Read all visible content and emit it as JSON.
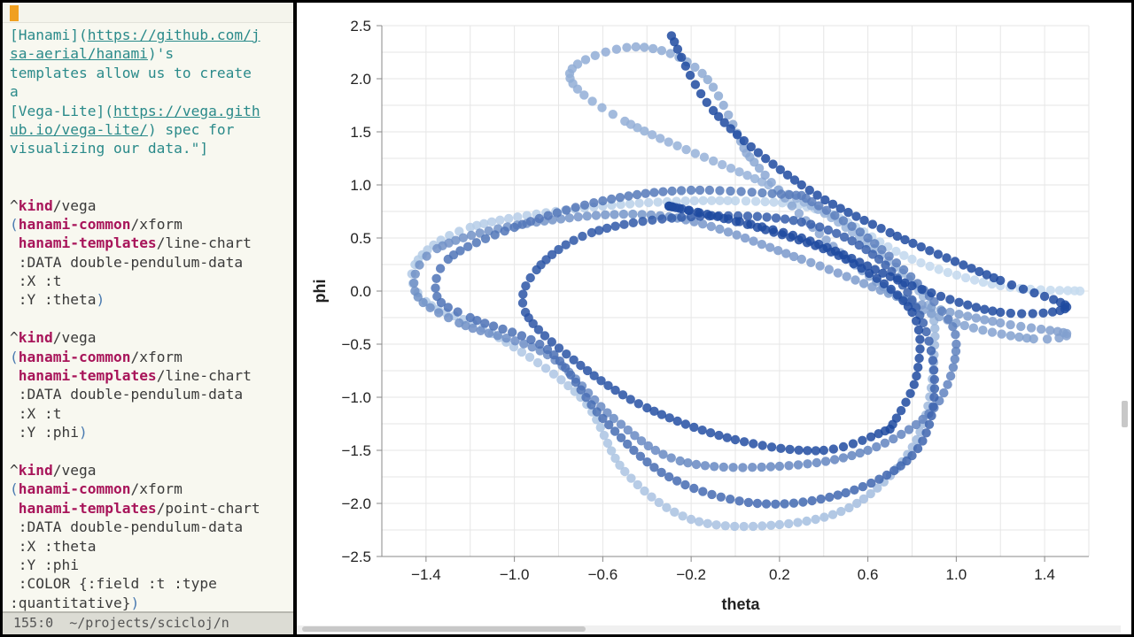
{
  "editor": {
    "lines": [
      [
        {
          "t": "[Hanami](",
          "c": "str"
        },
        {
          "t": "https://github.com/j",
          "c": "link"
        }
      ],
      [
        {
          "t": "sa-aerial/hanami",
          "c": "link"
        },
        {
          "t": ")'s",
          "c": "str"
        }
      ],
      [
        {
          "t": "templates allow us to create",
          "c": "str"
        }
      ],
      [
        {
          "t": "a",
          "c": "str"
        }
      ],
      [
        {
          "t": "[Vega-Lite](",
          "c": "str"
        },
        {
          "t": "https://vega.gith",
          "c": "link"
        }
      ],
      [
        {
          "t": "ub.io/vega-lite/",
          "c": "link"
        },
        {
          "t": ") spec for",
          "c": "str"
        }
      ],
      [
        {
          "t": "visualizing our data.\"]",
          "c": "str"
        }
      ],
      [],
      [],
      [
        {
          "t": "^",
          "c": "plain"
        },
        {
          "t": "kind",
          "c": "kw"
        },
        {
          "t": "/vega",
          "c": "plain"
        }
      ],
      [
        {
          "t": "(",
          "c": "paren"
        },
        {
          "t": "hanami-common",
          "c": "ns"
        },
        {
          "t": "/xform",
          "c": "plain"
        }
      ],
      [
        {
          "t": " ",
          "c": "plain"
        },
        {
          "t": "hanami-templates",
          "c": "ns"
        },
        {
          "t": "/line-chart",
          "c": "plain"
        }
      ],
      [
        {
          "t": " :DATA double-pendulum-data",
          "c": "plain"
        }
      ],
      [
        {
          "t": " :X :t",
          "c": "plain"
        }
      ],
      [
        {
          "t": " :Y :theta",
          "c": "plain"
        },
        {
          "t": ")",
          "c": "paren"
        }
      ],
      [],
      [
        {
          "t": "^",
          "c": "plain"
        },
        {
          "t": "kind",
          "c": "kw"
        },
        {
          "t": "/vega",
          "c": "plain"
        }
      ],
      [
        {
          "t": "(",
          "c": "paren"
        },
        {
          "t": "hanami-common",
          "c": "ns"
        },
        {
          "t": "/xform",
          "c": "plain"
        }
      ],
      [
        {
          "t": " ",
          "c": "plain"
        },
        {
          "t": "hanami-templates",
          "c": "ns"
        },
        {
          "t": "/line-chart",
          "c": "plain"
        }
      ],
      [
        {
          "t": " :DATA double-pendulum-data",
          "c": "plain"
        }
      ],
      [
        {
          "t": " :X :t",
          "c": "plain"
        }
      ],
      [
        {
          "t": " :Y :phi",
          "c": "plain"
        },
        {
          "t": ")",
          "c": "paren"
        }
      ],
      [],
      [
        {
          "t": "^",
          "c": "plain"
        },
        {
          "t": "kind",
          "c": "kw"
        },
        {
          "t": "/vega",
          "c": "plain"
        }
      ],
      [
        {
          "t": "(",
          "c": "paren"
        },
        {
          "t": "hanami-common",
          "c": "ns"
        },
        {
          "t": "/xform",
          "c": "plain"
        }
      ],
      [
        {
          "t": " ",
          "c": "plain"
        },
        {
          "t": "hanami-templates",
          "c": "ns"
        },
        {
          "t": "/point-chart",
          "c": "plain"
        }
      ],
      [
        {
          "t": " :DATA double-pendulum-data",
          "c": "plain"
        }
      ],
      [
        {
          "t": " :X :theta",
          "c": "plain"
        }
      ],
      [
        {
          "t": " :Y :phi",
          "c": "plain"
        }
      ],
      [
        {
          "t": " :COLOR {:field :t :type",
          "c": "plain"
        }
      ],
      [
        {
          "t": ":quantitative}",
          "c": "plain"
        },
        {
          "t": ")",
          "c": "paren"
        }
      ]
    ],
    "modeline": "155:0  ~/projects/scicloj/n"
  },
  "colors": {
    "t_low": "#c6dbef",
    "t_high": "#1f4aa0"
  },
  "chart_data": {
    "type": "scatter",
    "xlabel": "theta",
    "ylabel": "phi",
    "xlim": [
      -1.6,
      1.6
    ],
    "ylim": [
      -2.5,
      2.5
    ],
    "x_ticks": [
      "−1.4",
      "−1.0",
      "−0.6",
      "−0.2",
      "0.2",
      "0.6",
      "1.0",
      "1.4"
    ],
    "x_tick_values": [
      -1.4,
      -1.0,
      -0.6,
      -0.2,
      0.2,
      0.6,
      1.0,
      1.4
    ],
    "y_ticks": [
      "2.5",
      "2.0",
      "1.5",
      "1.0",
      "0.5",
      "0.0",
      "−0.5",
      "−1.0",
      "−1.5",
      "−2.0",
      "−2.5"
    ],
    "y_tick_values": [
      2.5,
      2.0,
      1.5,
      1.0,
      0.5,
      0.0,
      -0.5,
      -1.0,
      -1.5,
      -2.0,
      -2.5
    ],
    "grid": true,
    "color_field": "t",
    "series": [
      {
        "t": 0.0,
        "points": [
          [
            1.56,
            0.0
          ],
          [
            1.2,
            0.05
          ],
          [
            0.8,
            0.3
          ],
          [
            0.4,
            0.75
          ],
          [
            0.0,
            0.85
          ],
          [
            -0.6,
            0.8
          ],
          [
            -1.2,
            0.6
          ],
          [
            -1.45,
            0.25
          ],
          [
            -1.4,
            -0.1
          ],
          [
            -1.1,
            -0.4
          ],
          [
            -0.7,
            -1.0
          ],
          [
            -0.5,
            -1.7
          ],
          [
            -0.2,
            -2.15
          ],
          [
            0.2,
            -2.2
          ],
          [
            0.55,
            -2.0
          ],
          [
            0.82,
            -1.4
          ],
          [
            0.9,
            -0.6
          ],
          [
            0.85,
            -0.05
          ],
          [
            0.5,
            0.6
          ],
          [
            0.15,
            1.0
          ],
          [
            -0.5,
            1.6
          ],
          [
            -0.75,
            2.05
          ],
          [
            -0.45,
            2.3
          ],
          [
            -0.15,
            2.05
          ],
          [
            0.05,
            1.3
          ]
        ]
      },
      {
        "t": 0.35,
        "points": [
          [
            0.05,
            1.3
          ],
          [
            0.35,
            0.6
          ],
          [
            0.7,
            0.0
          ],
          [
            1.0,
            -0.3
          ],
          [
            1.35,
            -0.45
          ],
          [
            1.5,
            -0.4
          ],
          [
            1.2,
            -0.3
          ],
          [
            0.8,
            -0.1
          ],
          [
            0.3,
            0.3
          ],
          [
            -0.3,
            0.7
          ],
          [
            -0.9,
            0.65
          ],
          [
            -1.35,
            0.4
          ],
          [
            -1.45,
            0.0
          ],
          [
            -1.25,
            -0.3
          ],
          [
            -0.85,
            -0.6
          ],
          [
            -0.55,
            -1.2
          ],
          [
            -0.25,
            -1.6
          ],
          [
            0.2,
            -1.65
          ],
          [
            0.6,
            -1.5
          ],
          [
            0.9,
            -1.1
          ],
          [
            1.0,
            -0.5
          ],
          [
            0.9,
            -0.1
          ],
          [
            0.6,
            0.5
          ],
          [
            0.3,
            0.9
          ]
        ]
      },
      {
        "t": 0.65,
        "points": [
          [
            0.3,
            0.9
          ],
          [
            -0.2,
            0.95
          ],
          [
            -0.6,
            0.85
          ],
          [
            -1.0,
            0.6
          ],
          [
            -1.3,
            0.3
          ],
          [
            -1.35,
            -0.05
          ],
          [
            -1.2,
            -0.25
          ],
          [
            -0.85,
            -0.55
          ],
          [
            -0.6,
            -1.2
          ],
          [
            -0.3,
            -1.75
          ],
          [
            0.1,
            -2.0
          ],
          [
            0.5,
            -1.9
          ],
          [
            0.8,
            -1.55
          ],
          [
            0.9,
            -1.0
          ],
          [
            0.85,
            -0.3
          ],
          [
            0.65,
            0.3
          ],
          [
            0.3,
            0.65
          ],
          [
            -0.2,
            0.7
          ],
          [
            -0.65,
            0.55
          ],
          [
            -0.9,
            0.2
          ],
          [
            -0.95,
            -0.2
          ],
          [
            -0.7,
            -0.7
          ],
          [
            -0.4,
            -1.1
          ],
          [
            0.0,
            -1.4
          ],
          [
            0.4,
            -1.5
          ],
          [
            0.7,
            -1.3
          ]
        ]
      },
      {
        "t": 1.0,
        "points": [
          [
            0.7,
            -1.3
          ],
          [
            0.82,
            -0.8
          ],
          [
            0.8,
            -0.2
          ],
          [
            0.5,
            0.3
          ],
          [
            0.1,
            0.6
          ],
          [
            -0.3,
            0.8
          ],
          [
            0.3,
            0.5
          ],
          [
            0.8,
            0.05
          ],
          [
            1.2,
            -0.2
          ],
          [
            1.5,
            -0.15
          ],
          [
            1.2,
            0.1
          ],
          [
            0.7,
            0.55
          ],
          [
            0.3,
            1.0
          ],
          [
            -0.1,
            1.7
          ],
          [
            -0.3,
            2.45
          ]
        ]
      }
    ]
  }
}
